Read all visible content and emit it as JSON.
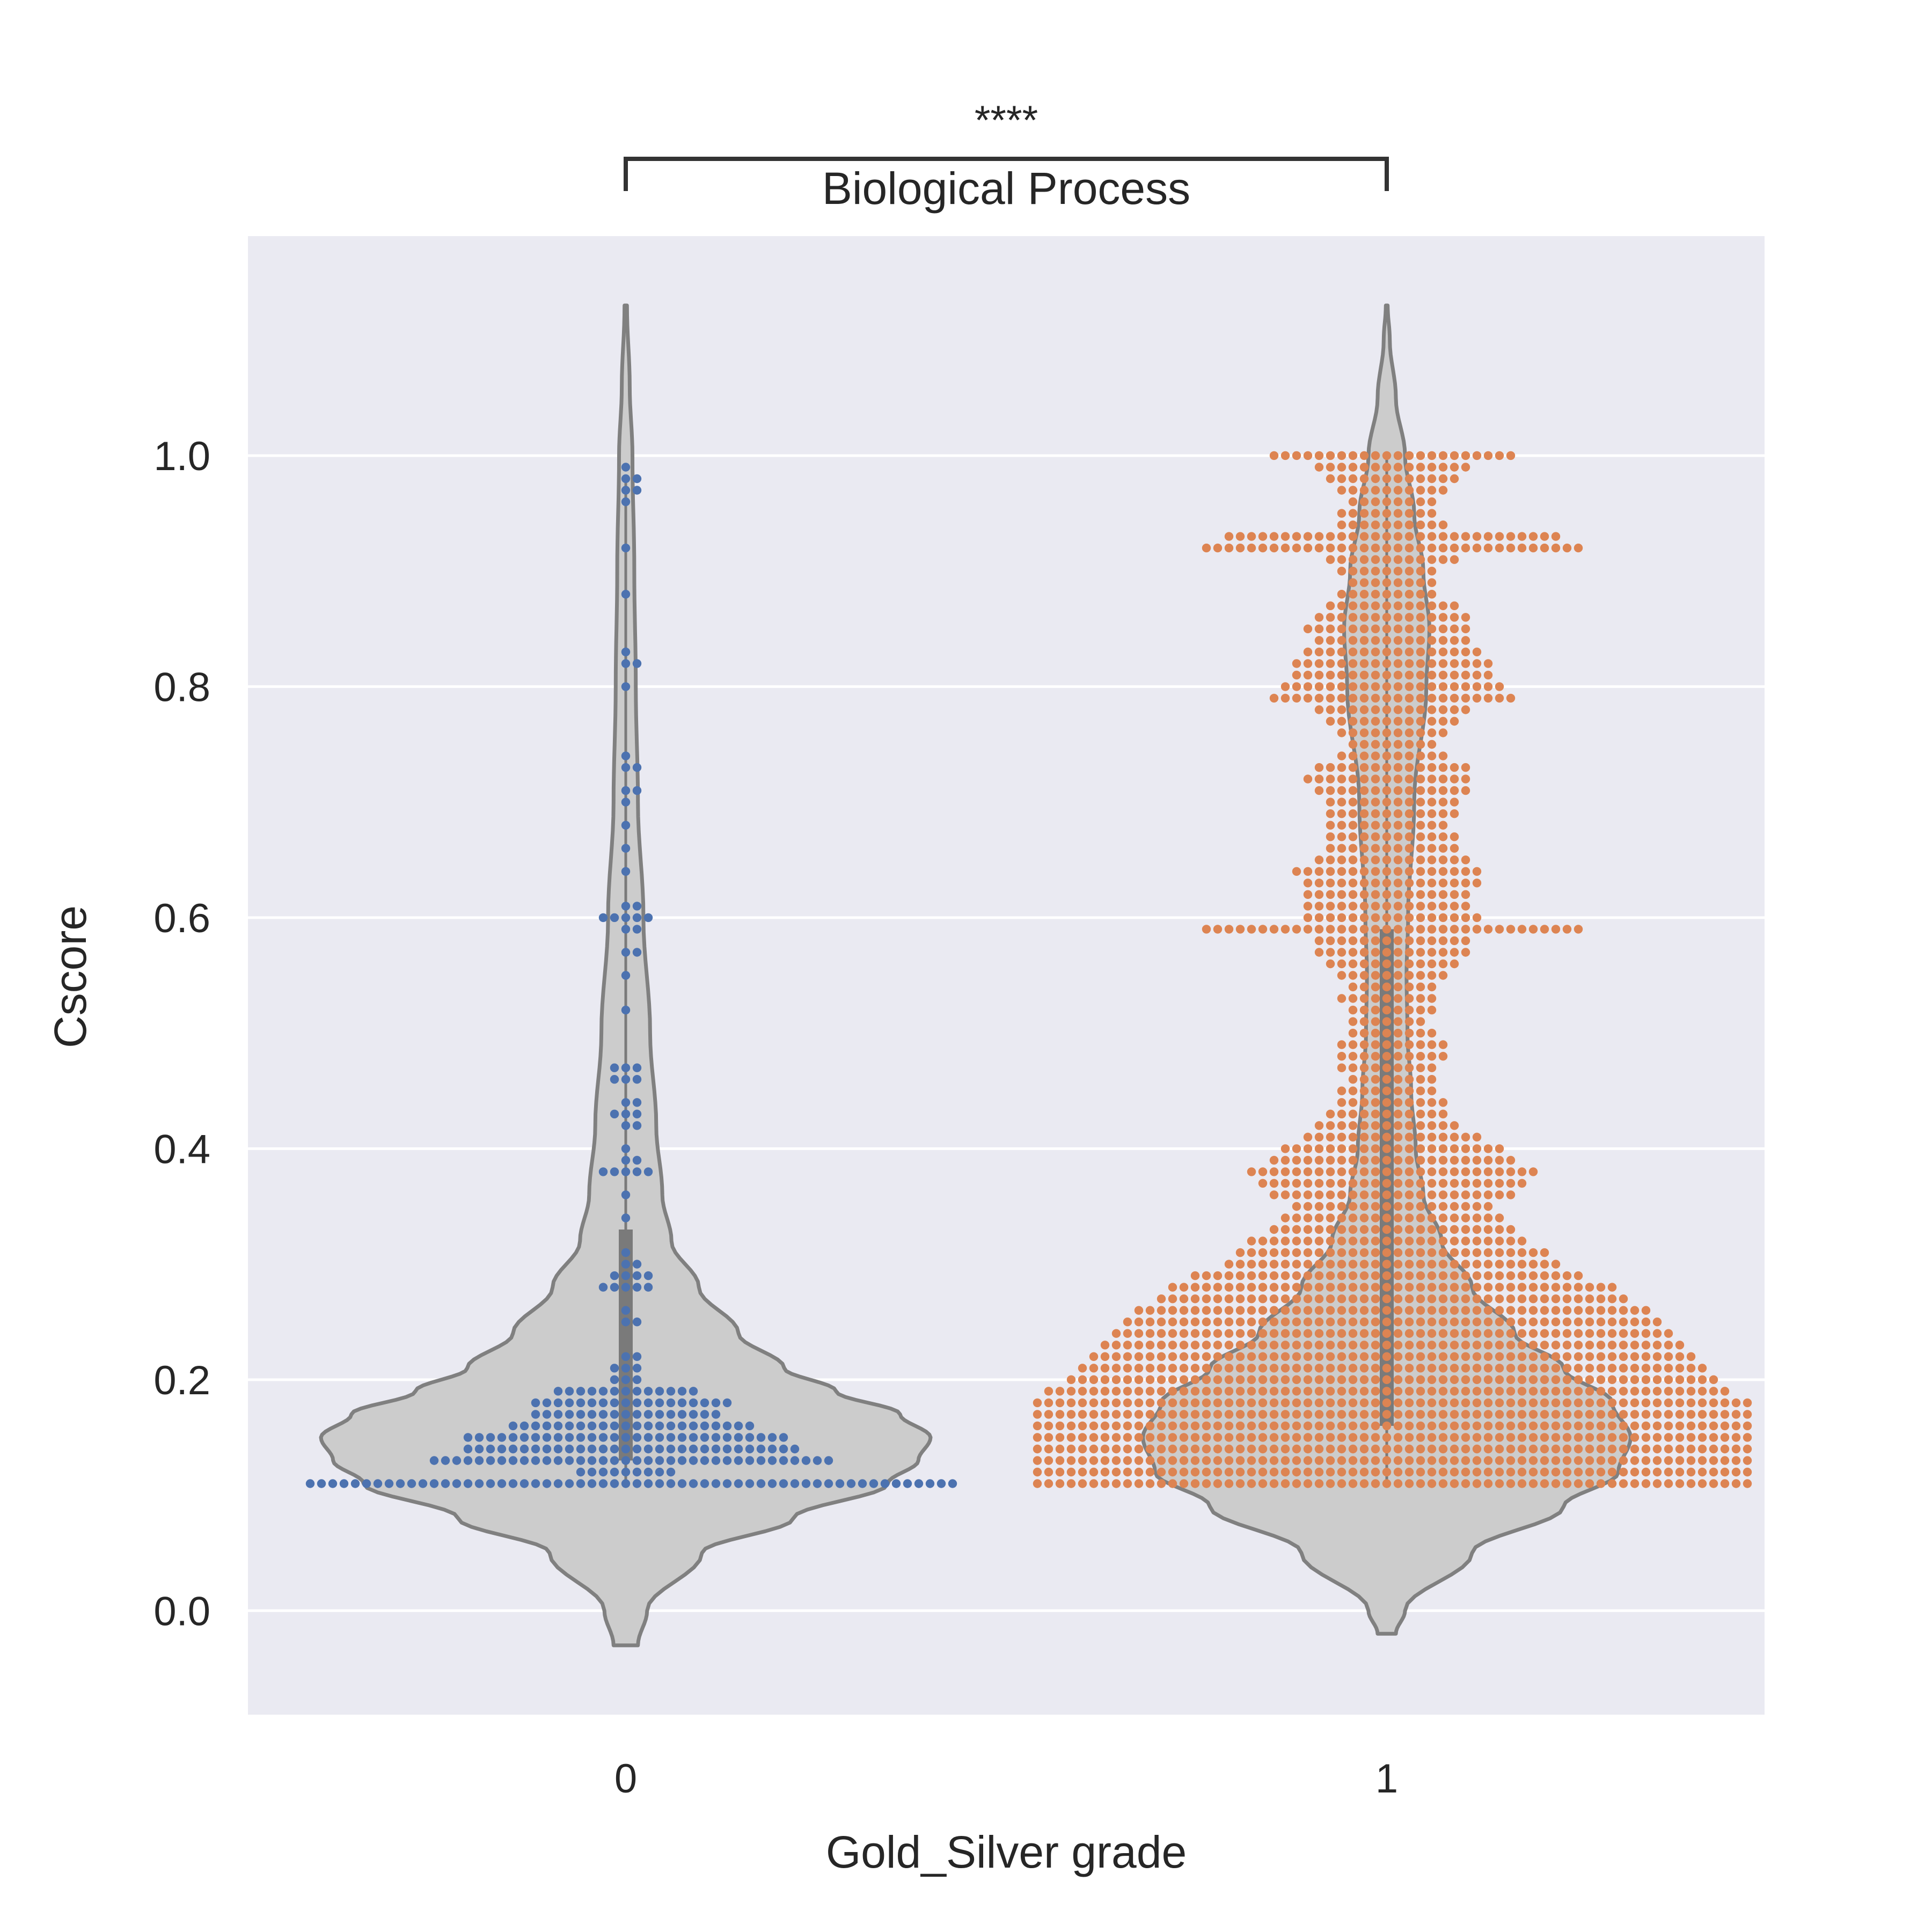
{
  "chart_data": {
    "type": "violin",
    "title": "Biological Process",
    "significance": "****",
    "xlabel": "Gold_Silver grade",
    "ylabel": "Cscore",
    "categories": [
      "0",
      "1"
    ],
    "ylim": [
      -0.09,
      1.19
    ],
    "yticks": [
      0.0,
      0.2,
      0.4,
      0.6,
      0.8,
      1.0
    ],
    "ytick_labels": [
      "0.0",
      "0.2",
      "0.4",
      "0.6",
      "0.8",
      "1.0"
    ],
    "grid": "horizontal",
    "colors": {
      "background": "#eaeaf2",
      "grid": "#ffffff",
      "violin_fill": "#cccccc",
      "violin_edge": "#808080",
      "series_0": "#4c72b0",
      "series_1": "#dd8452",
      "text": "#262626"
    },
    "violins": [
      {
        "category": "0",
        "y_min": -0.03,
        "y_max": 1.13,
        "q1": 0.13,
        "median": 0.17,
        "q3": 0.33,
        "whisker_low": 0.11,
        "whisker_high": 0.98,
        "profile": [
          [
            -0.03,
            0.04
          ],
          [
            0.0,
            0.07
          ],
          [
            0.05,
            0.25
          ],
          [
            0.08,
            0.55
          ],
          [
            0.11,
            0.86
          ],
          [
            0.13,
            0.96
          ],
          [
            0.15,
            1.0
          ],
          [
            0.17,
            0.9
          ],
          [
            0.19,
            0.69
          ],
          [
            0.21,
            0.52
          ],
          [
            0.24,
            0.37
          ],
          [
            0.28,
            0.24
          ],
          [
            0.32,
            0.15
          ],
          [
            0.36,
            0.12
          ],
          [
            0.42,
            0.1
          ],
          [
            0.5,
            0.08
          ],
          [
            0.6,
            0.058
          ],
          [
            0.7,
            0.04
          ],
          [
            0.8,
            0.033
          ],
          [
            0.9,
            0.028
          ],
          [
            1.0,
            0.022
          ],
          [
            1.06,
            0.013
          ],
          [
            1.13,
            0.004
          ]
        ],
        "swarm": [
          [
            0.11,
            58
          ],
          [
            0.12,
            9
          ],
          [
            0.13,
            36
          ],
          [
            0.14,
            30
          ],
          [
            0.15,
            29
          ],
          [
            0.16,
            22
          ],
          [
            0.17,
            17
          ],
          [
            0.18,
            18
          ],
          [
            0.19,
            13
          ],
          [
            0.2,
            3
          ],
          [
            0.21,
            3
          ],
          [
            0.22,
            2
          ],
          [
            0.25,
            2
          ],
          [
            0.26,
            1
          ],
          [
            0.28,
            5
          ],
          [
            0.29,
            4
          ],
          [
            0.3,
            2
          ],
          [
            0.31,
            1
          ],
          [
            0.34,
            1
          ],
          [
            0.36,
            1
          ],
          [
            0.38,
            5
          ],
          [
            0.39,
            2
          ],
          [
            0.4,
            1
          ],
          [
            0.42,
            2
          ],
          [
            0.43,
            3
          ],
          [
            0.44,
            2
          ],
          [
            0.46,
            3
          ],
          [
            0.47,
            3
          ],
          [
            0.52,
            1
          ],
          [
            0.55,
            1
          ],
          [
            0.57,
            2
          ],
          [
            0.59,
            2
          ],
          [
            0.6,
            5
          ],
          [
            0.61,
            2
          ],
          [
            0.64,
            1
          ],
          [
            0.66,
            1
          ],
          [
            0.68,
            1
          ],
          [
            0.7,
            1
          ],
          [
            0.71,
            2
          ],
          [
            0.73,
            2
          ],
          [
            0.74,
            1
          ],
          [
            0.8,
            1
          ],
          [
            0.82,
            2
          ],
          [
            0.83,
            1
          ],
          [
            0.88,
            1
          ],
          [
            0.92,
            1
          ],
          [
            0.96,
            1
          ],
          [
            0.97,
            2
          ],
          [
            0.98,
            2
          ],
          [
            0.99,
            1
          ]
        ]
      },
      {
        "category": "1",
        "y_min": -0.02,
        "y_max": 1.13,
        "q1": 0.16,
        "median": 0.27,
        "q3": 0.59,
        "whisker_low": 0.11,
        "whisker_high": 1.0,
        "profile": [
          [
            -0.02,
            0.03
          ],
          [
            0.0,
            0.06
          ],
          [
            0.05,
            0.28
          ],
          [
            0.09,
            0.58
          ],
          [
            0.12,
            0.76
          ],
          [
            0.15,
            0.8
          ],
          [
            0.18,
            0.74
          ],
          [
            0.21,
            0.58
          ],
          [
            0.24,
            0.42
          ],
          [
            0.28,
            0.28
          ],
          [
            0.32,
            0.18
          ],
          [
            0.36,
            0.12
          ],
          [
            0.4,
            0.095
          ],
          [
            0.45,
            0.08
          ],
          [
            0.5,
            0.068
          ],
          [
            0.55,
            0.065
          ],
          [
            0.6,
            0.07
          ],
          [
            0.7,
            0.09
          ],
          [
            0.8,
            0.13
          ],
          [
            0.85,
            0.14
          ],
          [
            0.9,
            0.12
          ],
          [
            0.95,
            0.09
          ],
          [
            1.0,
            0.06
          ],
          [
            1.05,
            0.03
          ],
          [
            1.1,
            0.01
          ],
          [
            1.13,
            0.003
          ]
        ],
        "swarm": [
          [
            0.11,
            64
          ],
          [
            0.12,
            64
          ],
          [
            0.13,
            64
          ],
          [
            0.14,
            64
          ],
          [
            0.15,
            64
          ],
          [
            0.16,
            64
          ],
          [
            0.17,
            64
          ],
          [
            0.18,
            64
          ],
          [
            0.19,
            61
          ],
          [
            0.2,
            58
          ],
          [
            0.21,
            56
          ],
          [
            0.22,
            54
          ],
          [
            0.23,
            52
          ],
          [
            0.24,
            50
          ],
          [
            0.25,
            48
          ],
          [
            0.26,
            46
          ],
          [
            0.27,
            42
          ],
          [
            0.28,
            40
          ],
          [
            0.29,
            35
          ],
          [
            0.3,
            30
          ],
          [
            0.31,
            28
          ],
          [
            0.32,
            25
          ],
          [
            0.33,
            22
          ],
          [
            0.34,
            20
          ],
          [
            0.35,
            18
          ],
          [
            0.36,
            22
          ],
          [
            0.37,
            24
          ],
          [
            0.38,
            26
          ],
          [
            0.39,
            22
          ],
          [
            0.4,
            20
          ],
          [
            0.41,
            16
          ],
          [
            0.42,
            13
          ],
          [
            0.43,
            11
          ],
          [
            0.44,
            10
          ],
          [
            0.45,
            9
          ],
          [
            0.46,
            8
          ],
          [
            0.47,
            9
          ],
          [
            0.48,
            10
          ],
          [
            0.49,
            10
          ],
          [
            0.5,
            8
          ],
          [
            0.51,
            7
          ],
          [
            0.52,
            8
          ],
          [
            0.53,
            9
          ],
          [
            0.54,
            8
          ],
          [
            0.55,
            10
          ],
          [
            0.56,
            12
          ],
          [
            0.57,
            14
          ],
          [
            0.58,
            14
          ],
          [
            0.59,
            34
          ],
          [
            0.6,
            16
          ],
          [
            0.61,
            15
          ],
          [
            0.62,
            15
          ],
          [
            0.63,
            16
          ],
          [
            0.64,
            17
          ],
          [
            0.65,
            14
          ],
          [
            0.66,
            12
          ],
          [
            0.67,
            12
          ],
          [
            0.68,
            11
          ],
          [
            0.69,
            12
          ],
          [
            0.7,
            12
          ],
          [
            0.71,
            14
          ],
          [
            0.72,
            15
          ],
          [
            0.73,
            14
          ],
          [
            0.74,
            10
          ],
          [
            0.75,
            8
          ],
          [
            0.76,
            10
          ],
          [
            0.77,
            12
          ],
          [
            0.78,
            14
          ],
          [
            0.79,
            22
          ],
          [
            0.8,
            20
          ],
          [
            0.81,
            18
          ],
          [
            0.82,
            18
          ],
          [
            0.83,
            16
          ],
          [
            0.84,
            14
          ],
          [
            0.85,
            15
          ],
          [
            0.86,
            14
          ],
          [
            0.87,
            12
          ],
          [
            0.88,
            9
          ],
          [
            0.89,
            8
          ],
          [
            0.9,
            9
          ],
          [
            0.91,
            12
          ],
          [
            0.92,
            34
          ],
          [
            0.93,
            30
          ],
          [
            0.94,
            10
          ],
          [
            0.95,
            9
          ],
          [
            0.96,
            8
          ],
          [
            0.97,
            10
          ],
          [
            0.98,
            12
          ],
          [
            0.99,
            14
          ],
          [
            1.0,
            22
          ]
        ]
      }
    ]
  }
}
